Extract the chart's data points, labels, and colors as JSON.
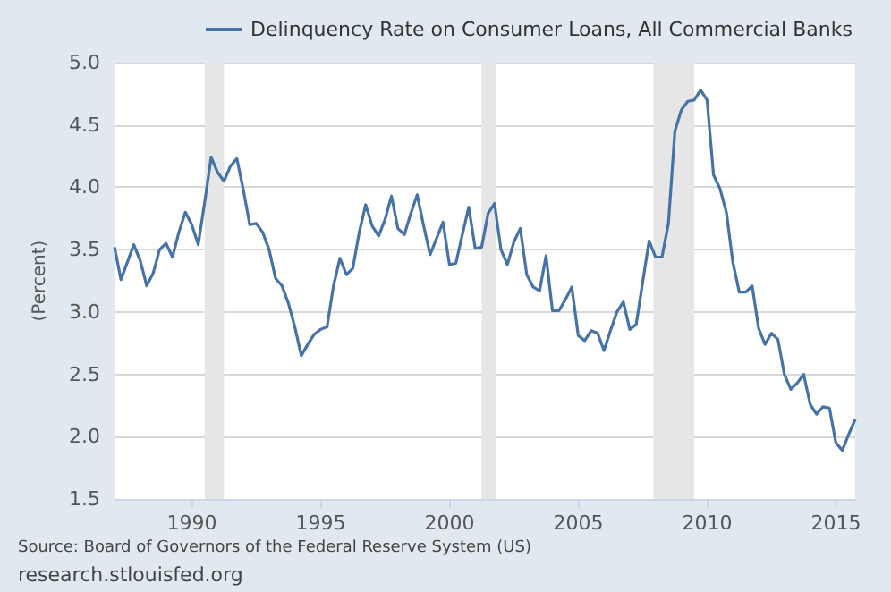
{
  "chart_data": {
    "type": "line",
    "ylabel": "(Percent)",
    "x": [
      1987,
      1987.25,
      1987.5,
      1987.75,
      1988,
      1988.25,
      1988.5,
      1988.75,
      1989,
      1989.25,
      1989.5,
      1989.75,
      1990,
      1990.25,
      1990.5,
      1990.75,
      1991,
      1991.25,
      1991.5,
      1991.75,
      1992,
      1992.25,
      1992.5,
      1992.75,
      1993,
      1993.25,
      1993.5,
      1993.75,
      1994,
      1994.25,
      1994.5,
      1994.75,
      1995,
      1995.25,
      1995.5,
      1995.75,
      1996,
      1996.25,
      1996.5,
      1996.75,
      1997,
      1997.25,
      1997.5,
      1997.75,
      1998,
      1998.25,
      1998.5,
      1998.75,
      1999,
      1999.25,
      1999.5,
      1999.75,
      2000,
      2000.25,
      2000.5,
      2000.75,
      2001,
      2001.25,
      2001.5,
      2001.75,
      2002,
      2002.25,
      2002.5,
      2002.75,
      2003,
      2003.25,
      2003.5,
      2003.75,
      2004,
      2004.25,
      2004.5,
      2004.75,
      2005,
      2005.25,
      2005.5,
      2005.75,
      2006,
      2006.25,
      2006.5,
      2006.75,
      2007,
      2007.25,
      2007.5,
      2007.75,
      2008,
      2008.25,
      2008.5,
      2008.75,
      2009,
      2009.25,
      2009.5,
      2009.75,
      2010,
      2010.25,
      2010.5,
      2010.75,
      2011,
      2011.25,
      2011.5,
      2011.75,
      2012,
      2012.25,
      2012.5,
      2012.75,
      2013,
      2013.25,
      2013.5,
      2013.75,
      2014,
      2014.25,
      2014.5,
      2014.75,
      2015,
      2015.25,
      2015.5,
      2015.75
    ],
    "series": [
      {
        "name": "Delinquency Rate on Consumer Loans, All Commercial Banks",
        "color": "#4572a7",
        "values": [
          3.52,
          3.26,
          3.4,
          3.54,
          3.41,
          3.21,
          3.31,
          3.5,
          3.55,
          3.44,
          3.64,
          3.8,
          3.7,
          3.54,
          3.88,
          4.24,
          4.12,
          4.05,
          4.17,
          4.23,
          3.98,
          3.7,
          3.71,
          3.64,
          3.5,
          3.27,
          3.21,
          3.07,
          2.88,
          2.65,
          2.74,
          2.82,
          2.86,
          2.88,
          3.21,
          3.43,
          3.3,
          3.35,
          3.64,
          3.86,
          3.69,
          3.61,
          3.74,
          3.93,
          3.67,
          3.62,
          3.79,
          3.94,
          3.69,
          3.46,
          3.59,
          3.72,
          3.38,
          3.39,
          3.62,
          3.84,
          3.51,
          3.52,
          3.79,
          3.87,
          3.5,
          3.38,
          3.56,
          3.67,
          3.3,
          3.2,
          3.17,
          3.45,
          3.01,
          3.01,
          3.1,
          3.2,
          2.81,
          2.77,
          2.85,
          2.83,
          2.69,
          2.85,
          3.0,
          3.08,
          2.86,
          2.9,
          3.24,
          3.57,
          3.44,
          3.44,
          3.71,
          4.45,
          4.62,
          4.69,
          4.7,
          4.78,
          4.7,
          4.1,
          3.99,
          3.8,
          3.4,
          3.16,
          3.16,
          3.21,
          2.87,
          2.74,
          2.83,
          2.78,
          2.5,
          2.38,
          2.43,
          2.5,
          2.26,
          2.18,
          2.24,
          2.23,
          1.95,
          1.89,
          2.02,
          2.14
        ]
      }
    ],
    "xlim": [
      1987,
      2015.75
    ],
    "xticks": [
      1990,
      1995,
      2000,
      2005,
      2010,
      2015
    ],
    "ylim": [
      1.5,
      5.0
    ],
    "yticks": [
      1.5,
      {
        "value": 2,
        "label": "2.0"
      },
      2.5,
      {
        "value": 3,
        "label": "3.0"
      },
      3.5,
      {
        "value": 4,
        "label": "4.0"
      },
      4.5,
      {
        "value": 5,
        "label": "5.0"
      }
    ],
    "bands": [
      {
        "axis": "x",
        "from": 1990.5,
        "to": 1991.25,
        "color": "#e6e6e6"
      },
      {
        "axis": "x",
        "from": 2001.25,
        "to": 2001.83,
        "color": "#e6e6e6"
      },
      {
        "axis": "x",
        "from": 2007.92,
        "to": 2009.5,
        "color": "#e6e6e6"
      }
    ],
    "grid": "y",
    "legend": "top",
    "marker": "none",
    "line_style": "solid",
    "annotations": [
      "Source: Board of Governors of the Federal Reserve System (US)",
      "research.stlouisfed.org"
    ]
  }
}
